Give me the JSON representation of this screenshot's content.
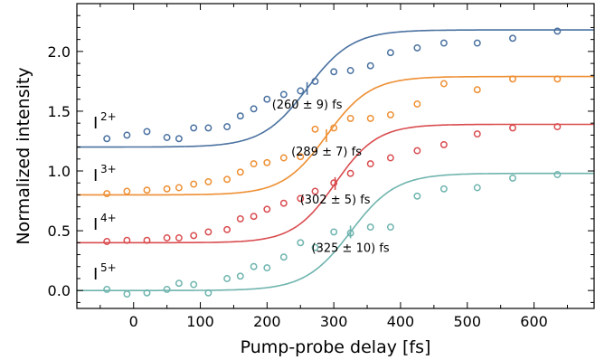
{
  "chart_data": {
    "type": "scatter",
    "xlabel": "Pump-probe delay [fs]",
    "ylabel": "Normalized intensity",
    "xlim": [
      -85,
      690
    ],
    "ylim": [
      -0.15,
      2.4
    ],
    "xticks": [
      0,
      100,
      200,
      300,
      400,
      500,
      600
    ],
    "yticks": [
      0.0,
      0.5,
      1.0,
      1.5,
      2.0
    ],
    "xtick_labels": [
      "0",
      "100",
      "200",
      "300",
      "400",
      "500",
      "600"
    ],
    "ytick_labels": [
      "0.0",
      "0.5",
      "1.0",
      "1.5",
      "2.0"
    ],
    "grid": false,
    "ticks_direction": "in",
    "series": [
      {
        "name": "I",
        "charge": "2+",
        "color": "#4a71a0",
        "annotation": "(260 ± 9) fs",
        "annotation_x": 260,
        "fit": {
          "low": 1.2,
          "high": 2.18,
          "t0": 260,
          "width": 95
        },
        "points": [
          [
            -40,
            1.27
          ],
          [
            -10,
            1.3
          ],
          [
            20,
            1.33
          ],
          [
            50,
            1.28
          ],
          [
            68,
            1.27
          ],
          [
            90,
            1.36
          ],
          [
            112,
            1.36
          ],
          [
            140,
            1.37
          ],
          [
            160,
            1.46
          ],
          [
            180,
            1.52
          ],
          [
            200,
            1.6
          ],
          [
            225,
            1.64
          ],
          [
            250,
            1.67
          ],
          [
            272,
            1.75
          ],
          [
            300,
            1.83
          ],
          [
            325,
            1.84
          ],
          [
            355,
            1.88
          ],
          [
            385,
            1.99
          ],
          [
            425,
            2.03
          ],
          [
            465,
            2.07
          ],
          [
            515,
            2.07
          ],
          [
            568,
            2.11
          ],
          [
            635,
            2.17
          ]
        ]
      },
      {
        "name": "I",
        "charge": "3+",
        "color": "#ee8f33",
        "annotation": "(289 ± 7) fs",
        "annotation_x": 289,
        "fit": {
          "low": 0.8,
          "high": 1.79,
          "t0": 289,
          "width": 92
        },
        "points": [
          [
            -40,
            0.81
          ],
          [
            -10,
            0.83
          ],
          [
            20,
            0.84
          ],
          [
            50,
            0.85
          ],
          [
            68,
            0.86
          ],
          [
            90,
            0.89
          ],
          [
            112,
            0.91
          ],
          [
            140,
            0.93
          ],
          [
            160,
            0.99
          ],
          [
            180,
            1.06
          ],
          [
            200,
            1.07
          ],
          [
            225,
            1.11
          ],
          [
            250,
            1.12
          ],
          [
            272,
            1.35
          ],
          [
            300,
            1.36
          ],
          [
            325,
            1.44
          ],
          [
            355,
            1.44
          ],
          [
            385,
            1.47
          ],
          [
            425,
            1.56
          ],
          [
            465,
            1.73
          ],
          [
            515,
            1.68
          ],
          [
            568,
            1.77
          ],
          [
            635,
            1.77
          ]
        ]
      },
      {
        "name": "I",
        "charge": "4+",
        "color": "#d94c4f",
        "annotation": "(302 ± 5) fs",
        "annotation_x": 302,
        "fit": {
          "low": 0.4,
          "high": 1.39,
          "t0": 302,
          "width": 88
        },
        "points": [
          [
            -40,
            0.41
          ],
          [
            -10,
            0.42
          ],
          [
            20,
            0.42
          ],
          [
            50,
            0.44
          ],
          [
            68,
            0.44
          ],
          [
            90,
            0.46
          ],
          [
            112,
            0.49
          ],
          [
            140,
            0.51
          ],
          [
            160,
            0.6
          ],
          [
            180,
            0.62
          ],
          [
            200,
            0.68
          ],
          [
            225,
            0.73
          ],
          [
            250,
            0.77
          ],
          [
            272,
            0.83
          ],
          [
            300,
            0.9
          ],
          [
            325,
            0.98
          ],
          [
            355,
            1.06
          ],
          [
            385,
            1.11
          ],
          [
            425,
            1.17
          ],
          [
            465,
            1.22
          ],
          [
            515,
            1.31
          ],
          [
            568,
            1.36
          ],
          [
            635,
            1.37
          ]
        ]
      },
      {
        "name": "I",
        "charge": "5+",
        "color": "#6fb4ae",
        "annotation": "(325 ± 10) fs",
        "annotation_x": 325,
        "fit": {
          "low": 0.0,
          "high": 0.98,
          "t0": 325,
          "width": 95
        },
        "points": [
          [
            -40,
            0.01
          ],
          [
            -10,
            -0.03
          ],
          [
            20,
            -0.02
          ],
          [
            50,
            0.01
          ],
          [
            68,
            0.06
          ],
          [
            90,
            0.05
          ],
          [
            112,
            -0.02
          ],
          [
            140,
            0.1
          ],
          [
            160,
            0.12
          ],
          [
            180,
            0.2
          ],
          [
            200,
            0.19
          ],
          [
            225,
            0.28
          ],
          [
            250,
            0.4
          ],
          [
            272,
            0.36
          ],
          [
            300,
            0.49
          ],
          [
            325,
            0.48
          ],
          [
            355,
            0.53
          ],
          [
            385,
            0.53
          ],
          [
            425,
            0.79
          ],
          [
            465,
            0.85
          ],
          [
            515,
            0.86
          ],
          [
            568,
            0.94
          ],
          [
            635,
            0.97
          ]
        ]
      }
    ]
  }
}
